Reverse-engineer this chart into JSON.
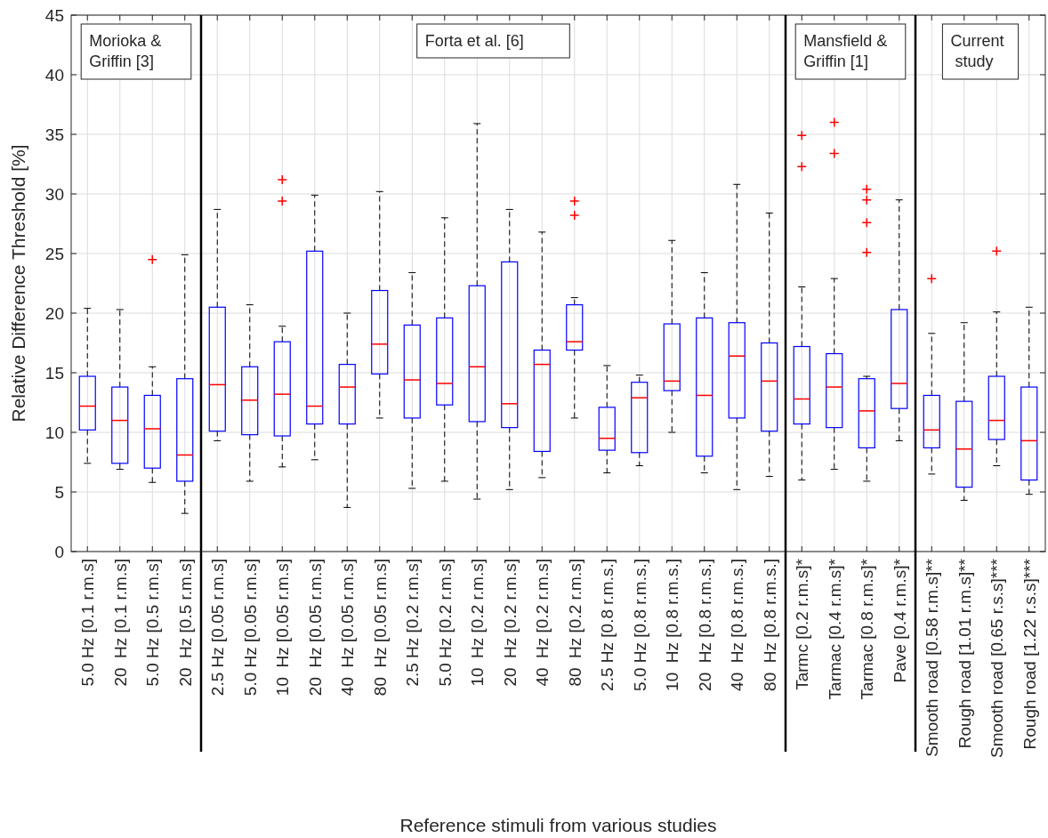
{
  "chart_data": {
    "type": "box",
    "xlabel": "Reference stimuli from various studies",
    "ylabel": "Relative Difference Threshold [%]",
    "categories": [
      "5.0 Hz [0.1 r.m.s]",
      "20  Hz [0.1 r.m.s]",
      "5.0 Hz [0.5 r.m.s]",
      "20  Hz [0.5 r.m.s]",
      "2.5 Hz [0.05 r.m.s]",
      "5.0 Hz [0.05 r.m.s]",
      "10  Hz [0.05 r.m.s]",
      "20  Hz [0.05 r.m.s]",
      "40  Hz [0.05 r.m.s]",
      "80  Hz [0.05 r.m.s]",
      "2.5 Hz [0.2 r.m.s]",
      "5.0 Hz [0.2 r.m.s]",
      "10  Hz [0.2 r.m.s]",
      "20  Hz [0.2 r.m.s]",
      "40  Hz [0.2 r.m.s]",
      "80  Hz [0.2 r.m.s]",
      "2.5 Hz [0.8 r.m.s.]",
      "5.0 Hz [0.8 r.m.s.]",
      "10  Hz [0.8 r.m.s.]",
      "20  Hz [0.8 r.m.s.]",
      "40  Hz [0.8 r.m.s.]",
      "80  Hz [0.8 r.m.s.]",
      "Tarmc [0.2 r.m.s]*",
      "Tarmac [0.4 r.m.s]*",
      "Tarmac [0.8 r.m.s]*",
      "Pave [0.4 r.m.s]*",
      "Smooth road [0.58 r.m.s]**",
      "Rough road [1.01 r.m.s]**",
      "Smooth road [0.65 r.s.s]***",
      "Rough road [1.22 r.s.s]***"
    ],
    "color": "#0000ff",
    "boxes": [
      {
        "low": 7.4,
        "q1": 10.2,
        "median": 12.2,
        "q3": 14.7,
        "high": 20.4
      },
      {
        "low": 6.9,
        "q1": 7.4,
        "median": 11.0,
        "q3": 13.8,
        "high": 20.3
      },
      {
        "low": 5.8,
        "q1": 7.0,
        "median": 10.3,
        "q3": 13.1,
        "high": 15.5,
        "outliers": [
          24.5
        ]
      },
      {
        "low": 3.2,
        "q1": 5.9,
        "median": 8.1,
        "q3": 14.5,
        "high": 24.9
      },
      {
        "low": 9.3,
        "q1": 10.1,
        "median": 14.0,
        "q3": 20.5,
        "high": 28.7
      },
      {
        "low": 5.9,
        "q1": 9.8,
        "median": 12.7,
        "q3": 15.5,
        "high": 20.7
      },
      {
        "low": 7.1,
        "q1": 9.7,
        "median": 13.2,
        "q3": 17.6,
        "high": 18.9,
        "outliers": [
          29.4,
          31.2
        ]
      },
      {
        "low": 7.7,
        "q1": 10.7,
        "median": 12.2,
        "q3": 25.2,
        "high": 29.9
      },
      {
        "low": 3.7,
        "q1": 10.7,
        "median": 13.8,
        "q3": 15.7,
        "high": 20.0
      },
      {
        "low": 11.2,
        "q1": 14.9,
        "median": 17.4,
        "q3": 21.9,
        "high": 30.2
      },
      {
        "low": 5.3,
        "q1": 11.2,
        "median": 14.4,
        "q3": 19.0,
        "high": 23.4
      },
      {
        "low": 5.9,
        "q1": 12.3,
        "median": 14.1,
        "q3": 19.6,
        "high": 28.0
      },
      {
        "low": 4.4,
        "q1": 10.9,
        "median": 15.5,
        "q3": 22.3,
        "high": 35.9
      },
      {
        "low": 5.2,
        "q1": 10.4,
        "median": 12.4,
        "q3": 24.3,
        "high": 28.7
      },
      {
        "low": 6.2,
        "q1": 8.4,
        "median": 15.7,
        "q3": 16.9,
        "high": 26.8
      },
      {
        "low": 11.2,
        "q1": 16.9,
        "median": 17.6,
        "q3": 20.7,
        "high": 21.3,
        "outliers": [
          28.2,
          29.4
        ]
      },
      {
        "low": 6.6,
        "q1": 8.5,
        "median": 9.5,
        "q3": 12.1,
        "high": 15.6
      },
      {
        "low": 7.2,
        "q1": 8.3,
        "median": 12.9,
        "q3": 14.2,
        "high": 14.8
      },
      {
        "low": 10.0,
        "q1": 13.5,
        "median": 14.3,
        "q3": 19.1,
        "high": 26.1
      },
      {
        "low": 6.6,
        "q1": 8.0,
        "median": 13.1,
        "q3": 19.6,
        "high": 23.4
      },
      {
        "low": 5.2,
        "q1": 11.2,
        "median": 16.4,
        "q3": 19.2,
        "high": 30.8
      },
      {
        "low": 6.3,
        "q1": 10.1,
        "median": 14.3,
        "q3": 17.5,
        "high": 28.4
      },
      {
        "low": 6.0,
        "q1": 10.7,
        "median": 12.8,
        "q3": 17.2,
        "high": 22.2,
        "outliers": [
          32.3,
          34.9
        ]
      },
      {
        "low": 6.9,
        "q1": 10.4,
        "median": 13.8,
        "q3": 16.6,
        "high": 22.9,
        "outliers": [
          33.4,
          36.0
        ]
      },
      {
        "low": 5.9,
        "q1": 8.7,
        "median": 11.8,
        "q3": 14.5,
        "high": 14.7,
        "outliers": [
          25.1,
          27.6,
          29.5,
          30.4
        ]
      },
      {
        "low": 9.3,
        "q1": 12.0,
        "median": 14.1,
        "q3": 20.3,
        "high": 29.5
      },
      {
        "low": 6.5,
        "q1": 8.7,
        "median": 10.2,
        "q3": 13.1,
        "high": 18.3,
        "outliers": [
          22.9
        ]
      },
      {
        "low": 4.3,
        "q1": 5.4,
        "median": 8.6,
        "q3": 12.6,
        "high": 19.2
      },
      {
        "low": 7.2,
        "q1": 9.4,
        "median": 11.0,
        "q3": 14.7,
        "high": 20.1,
        "outliers": [
          25.2
        ]
      },
      {
        "low": 4.8,
        "q1": 6.0,
        "median": 9.3,
        "q3": 13.8,
        "high": 20.5
      }
    ],
    "ylim": [
      0,
      45
    ],
    "yticks": [
      0,
      5,
      10,
      15,
      20,
      25,
      30,
      35,
      40,
      45
    ],
    "grid": true,
    "annotations": [
      "Morioka &\nGriffin [3]",
      "Forta et al. [6]",
      "Mansfield &\nGriffin [1]",
      "Current\n study"
    ]
  }
}
